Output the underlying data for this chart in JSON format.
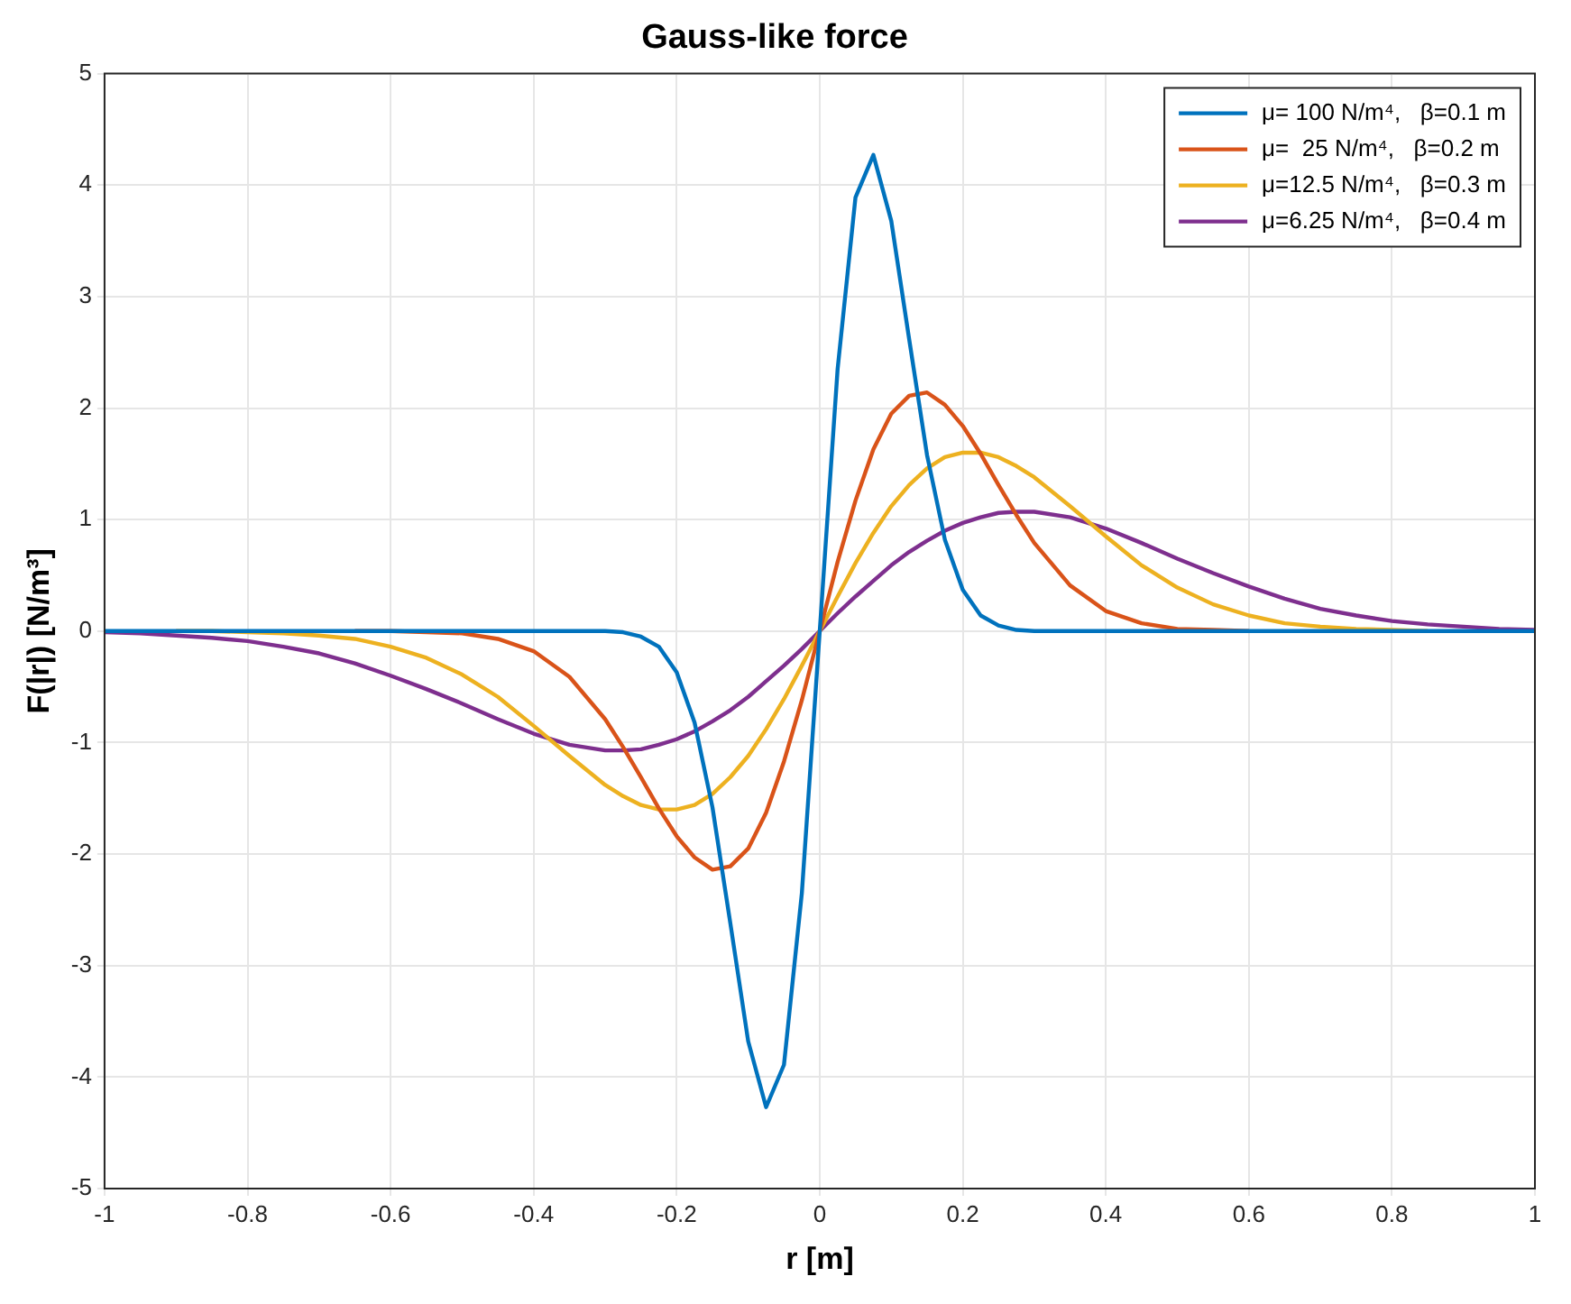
{
  "chart_data": {
    "type": "line",
    "title": "Gauss-like force",
    "xlabel": "r [m]",
    "ylabel": "F(|r|) [N/m³]",
    "x": [
      -1,
      -0.95,
      -0.9,
      -0.85,
      -0.8,
      -0.75,
      -0.7,
      -0.65,
      -0.6,
      -0.55,
      -0.5,
      -0.45,
      -0.4,
      -0.35,
      -0.3,
      -0.275,
      -0.25,
      -0.225,
      -0.2,
      -0.175,
      -0.15,
      -0.125,
      -0.1,
      -0.075,
      -0.05,
      -0.025,
      0,
      0.025,
      0.05,
      0.075,
      0.1,
      0.125,
      0.15,
      0.175,
      0.2,
      0.225,
      0.25,
      0.275,
      0.3,
      0.35,
      0.4,
      0.45,
      0.5,
      0.55,
      0.6,
      0.65,
      0.7,
      0.75,
      0.8,
      0.85,
      0.9,
      0.95,
      1
    ],
    "series": [
      {
        "name": "μ= 100 N/m⁴,   β=0.1 m",
        "color": "#0072bd",
        "values": [
          0,
          0,
          0,
          0,
          0,
          0,
          0,
          0,
          0,
          0,
          0,
          0,
          0,
          0,
          0,
          -0.01,
          -0.05,
          -0.14,
          -0.37,
          -0.82,
          -1.58,
          -2.62,
          -3.68,
          -4.27,
          -3.89,
          -2.35,
          0,
          2.35,
          3.89,
          4.27,
          3.68,
          2.62,
          1.58,
          0.82,
          0.37,
          0.14,
          0.05,
          0.01,
          0,
          0,
          0,
          0,
          0,
          0,
          0,
          0,
          0,
          0,
          0,
          0,
          0,
          0,
          0
        ]
      },
      {
        "name": "μ=  25 N/m⁴,   β=0.2 m",
        "color": "#d95319",
        "values": [
          null,
          null,
          null,
          null,
          null,
          null,
          null,
          0,
          0,
          -0.01,
          -0.02,
          -0.07,
          -0.18,
          -0.41,
          -0.79,
          -1.04,
          -1.31,
          -1.59,
          -1.84,
          -2.03,
          -2.14,
          -2.11,
          -1.95,
          -1.63,
          -1.17,
          -0.62,
          0,
          0.62,
          1.17,
          1.63,
          1.95,
          2.11,
          2.14,
          2.03,
          1.84,
          1.59,
          1.31,
          1.04,
          0.79,
          0.41,
          0.18,
          0.07,
          0.02,
          0.01,
          0,
          null,
          null,
          null,
          null,
          null,
          null,
          null,
          null
        ]
      },
      {
        "name": "μ=12.5 N/m⁴,   β=0.3 m",
        "color": "#edb120",
        "values": [
          null,
          null,
          0,
          0,
          -0.01,
          -0.02,
          -0.04,
          -0.07,
          -0.14,
          -0.24,
          -0.39,
          -0.59,
          -0.85,
          -1.12,
          -1.38,
          -1.48,
          -1.56,
          -1.6,
          -1.6,
          -1.56,
          -1.46,
          -1.31,
          -1.12,
          -0.88,
          -0.61,
          -0.31,
          0,
          0.31,
          0.61,
          0.88,
          1.12,
          1.31,
          1.46,
          1.56,
          1.6,
          1.6,
          1.56,
          1.48,
          1.38,
          1.12,
          0.85,
          0.59,
          0.39,
          0.24,
          0.14,
          0.07,
          0.04,
          0.02,
          0.01,
          0,
          null,
          null,
          null
        ]
      },
      {
        "name": "μ=6.25 N/m⁴,   β=0.4 m",
        "color": "#7e2f8e",
        "values": [
          -0.01,
          -0.02,
          -0.04,
          -0.06,
          -0.09,
          -0.14,
          -0.2,
          -0.29,
          -0.4,
          -0.52,
          -0.65,
          -0.79,
          -0.92,
          -1.02,
          -1.07,
          -1.07,
          -1.06,
          -1.02,
          -0.97,
          -0.9,
          -0.81,
          -0.71,
          -0.59,
          -0.45,
          -0.31,
          -0.16,
          0,
          0.16,
          0.31,
          0.45,
          0.59,
          0.71,
          0.81,
          0.9,
          0.97,
          1.02,
          1.06,
          1.07,
          1.07,
          1.02,
          0.92,
          0.79,
          0.65,
          0.52,
          0.4,
          0.29,
          0.2,
          0.14,
          0.09,
          0.06,
          0.04,
          0.02,
          0.01
        ]
      }
    ],
    "xlim": [
      -1,
      1
    ],
    "xticks": [
      -1,
      -0.8,
      -0.6,
      -0.4,
      -0.2,
      0,
      0.2,
      0.4,
      0.6,
      0.8,
      1
    ],
    "ylim": [
      -5,
      5
    ],
    "yticks": [
      -5,
      -4,
      -3,
      -2,
      -1,
      0,
      1,
      2,
      3,
      4,
      5
    ],
    "grid": true,
    "legend": "top right",
    "line_style": "solid"
  }
}
